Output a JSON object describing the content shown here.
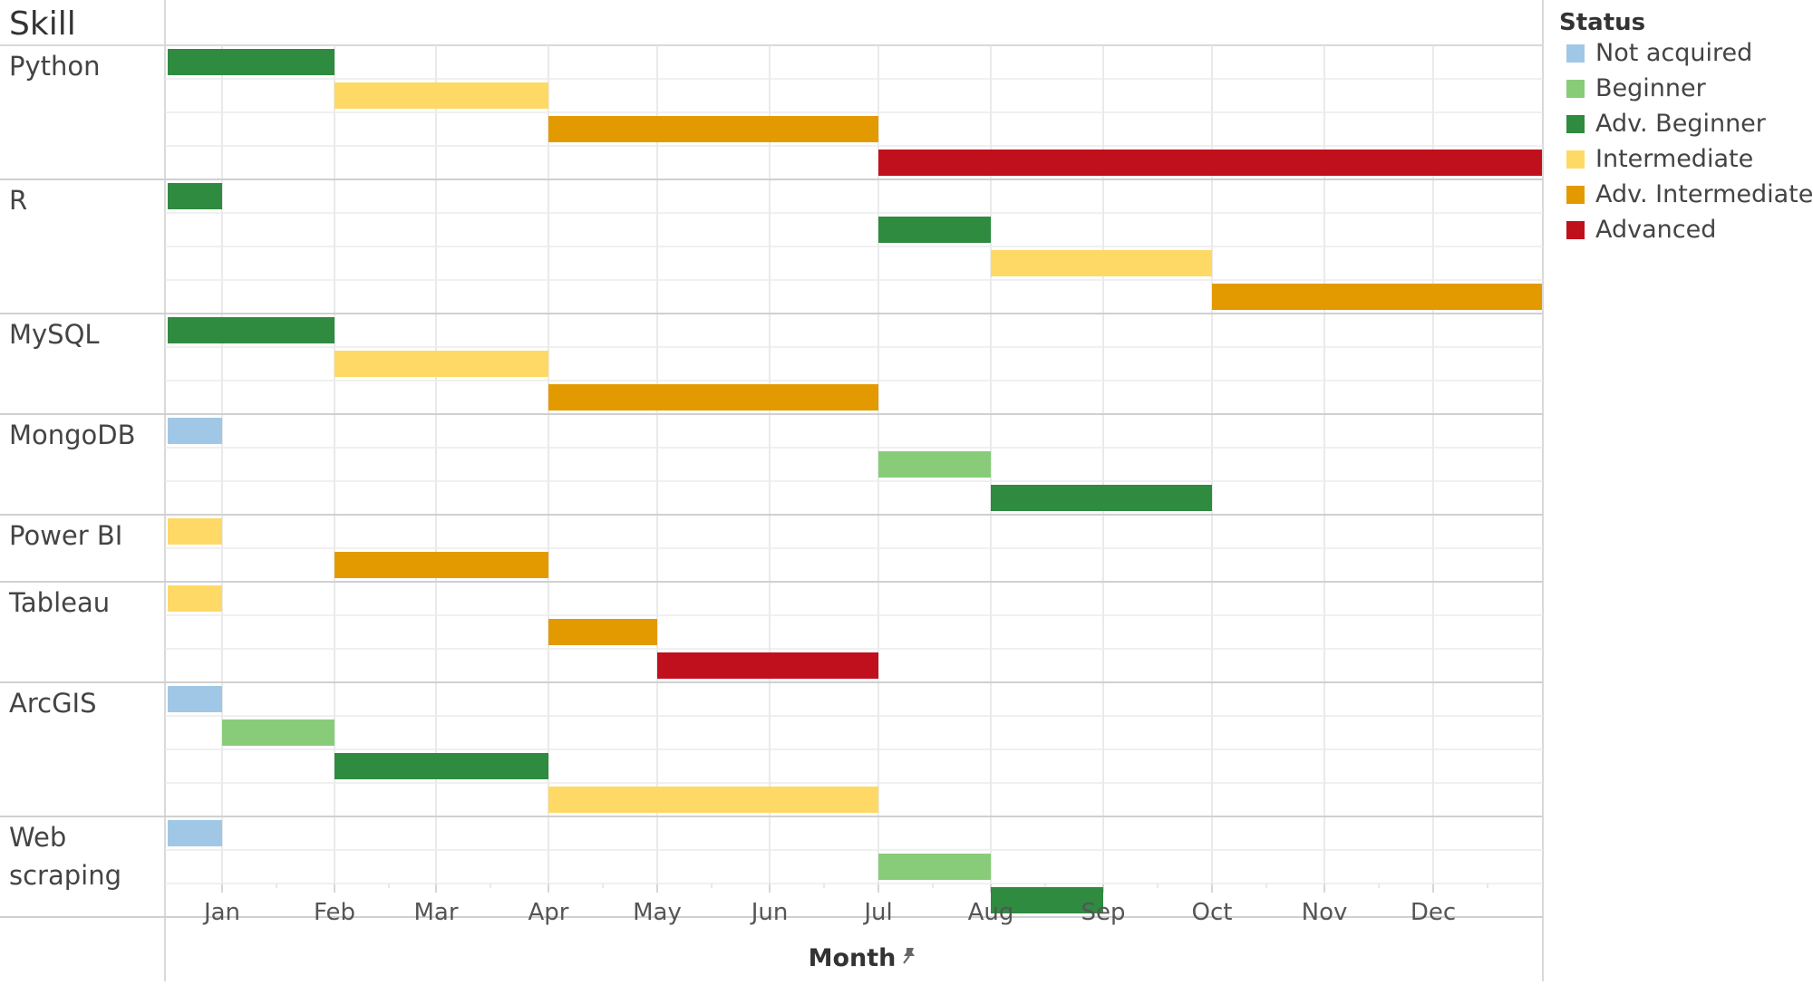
{
  "chart_data": {
    "type": "gantt",
    "row_header": "Skill",
    "xlabel": "Month",
    "x_ticks": [
      "Jan",
      "Feb",
      "Mar",
      "Apr",
      "May",
      "Jun",
      "Jul",
      "Aug",
      "Sep",
      "Oct",
      "Nov",
      "Dec"
    ],
    "legend": {
      "title": "Status",
      "placement": "right",
      "items": [
        {
          "name": "Not acquired",
          "color": "#a0c8e6"
        },
        {
          "name": "Beginner",
          "color": "#88cc7a"
        },
        {
          "name": "Adv. Beginner",
          "color": "#2e8b40"
        },
        {
          "name": "Intermediate",
          "color": "#ffd966"
        },
        {
          "name": "Adv. Intermediate",
          "color": "#e39a00"
        },
        {
          "name": "Advanced",
          "color": "#c0101e"
        }
      ]
    },
    "skills": [
      {
        "name": "Python",
        "label_lines": [
          "Python"
        ],
        "bars": [
          {
            "status": "Adv. Beginner",
            "start": "2000-12-17",
            "end": "2001-02-01"
          },
          {
            "status": "Intermediate",
            "start": "2001-02-01",
            "end": "2001-04-01"
          },
          {
            "status": "Adv. Intermediate",
            "start": "2001-04-01",
            "end": "2001-07-01"
          },
          {
            "status": "Advanced",
            "start": "2001-07-01",
            "end": "2001-12-31"
          }
        ]
      },
      {
        "name": "R",
        "label_lines": [
          "R"
        ],
        "bars": [
          {
            "status": "Adv. Beginner",
            "start": "2000-12-17",
            "end": "2001-01-01"
          },
          {
            "status": "Adv. Beginner",
            "start": "2001-07-01",
            "end": "2001-08-01"
          },
          {
            "status": "Intermediate",
            "start": "2001-08-01",
            "end": "2001-10-01"
          },
          {
            "status": "Adv. Intermediate",
            "start": "2001-10-01",
            "end": "2001-12-31"
          }
        ]
      },
      {
        "name": "MySQL",
        "label_lines": [
          "MySQL"
        ],
        "bars": [
          {
            "status": "Adv. Beginner",
            "start": "2000-12-17",
            "end": "2001-02-01"
          },
          {
            "status": "Intermediate",
            "start": "2001-02-01",
            "end": "2001-04-01"
          },
          {
            "status": "Adv. Intermediate",
            "start": "2001-04-01",
            "end": "2001-07-01"
          }
        ]
      },
      {
        "name": "MongoDB",
        "label_lines": [
          "MongoDB"
        ],
        "bars": [
          {
            "status": "Not acquired",
            "start": "2000-12-17",
            "end": "2001-01-01"
          },
          {
            "status": "Beginner",
            "start": "2001-07-01",
            "end": "2001-08-01"
          },
          {
            "status": "Adv. Beginner",
            "start": "2001-08-01",
            "end": "2001-10-01"
          }
        ]
      },
      {
        "name": "Power BI",
        "label_lines": [
          "Power BI"
        ],
        "bars": [
          {
            "status": "Intermediate",
            "start": "2000-12-17",
            "end": "2001-01-01"
          },
          {
            "status": "Adv. Intermediate",
            "start": "2001-02-01",
            "end": "2001-04-01"
          }
        ]
      },
      {
        "name": "Tableau",
        "label_lines": [
          "Tableau"
        ],
        "bars": [
          {
            "status": "Intermediate",
            "start": "2000-12-17",
            "end": "2001-01-01"
          },
          {
            "status": "Adv. Intermediate",
            "start": "2001-04-01",
            "end": "2001-05-01"
          },
          {
            "status": "Advanced",
            "start": "2001-05-01",
            "end": "2001-07-01"
          }
        ]
      },
      {
        "name": "ArcGIS",
        "label_lines": [
          "ArcGIS"
        ],
        "bars": [
          {
            "status": "Not acquired",
            "start": "2000-12-17",
            "end": "2001-01-01"
          },
          {
            "status": "Beginner",
            "start": "2001-01-01",
            "end": "2001-02-01"
          },
          {
            "status": "Adv. Beginner",
            "start": "2001-02-01",
            "end": "2001-04-01"
          },
          {
            "status": "Intermediate",
            "start": "2001-04-01",
            "end": "2001-07-01"
          }
        ]
      },
      {
        "name": "Web scraping",
        "label_lines": [
          "Web",
          "scraping"
        ],
        "bars": [
          {
            "status": "Not acquired",
            "start": "2000-12-17",
            "end": "2001-01-01"
          },
          {
            "status": "Beginner",
            "start": "2001-07-01",
            "end": "2001-08-01"
          },
          {
            "status": "Adv. Beginner",
            "start": "2001-08-01",
            "end": "2001-09-01"
          }
        ]
      }
    ],
    "grid": true
  }
}
